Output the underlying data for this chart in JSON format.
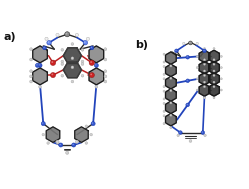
{
  "figsize": [
    2.49,
    1.89
  ],
  "dpi": 100,
  "background_color": "#ffffff",
  "label_a": "a)",
  "label_b": "b)",
  "label_fontsize": 8,
  "label_color": "#111111",
  "colors": {
    "C_dark": "#1a1a1a",
    "C_mid": "#3a3a3a",
    "C_light": "#888888",
    "N_dark": "#1133aa",
    "N_mid": "#3355cc",
    "N_light": "#6688ee",
    "O_dark": "#aa1111",
    "O_mid": "#cc2222",
    "O_light": "#ee5555",
    "H_dark": "#aaaaaa",
    "H_mid": "#cccccc",
    "H_light": "#eeeeee",
    "bond": "#2a2a2a",
    "N_bond": "#2244bb",
    "O_bond": "#bb2222"
  }
}
